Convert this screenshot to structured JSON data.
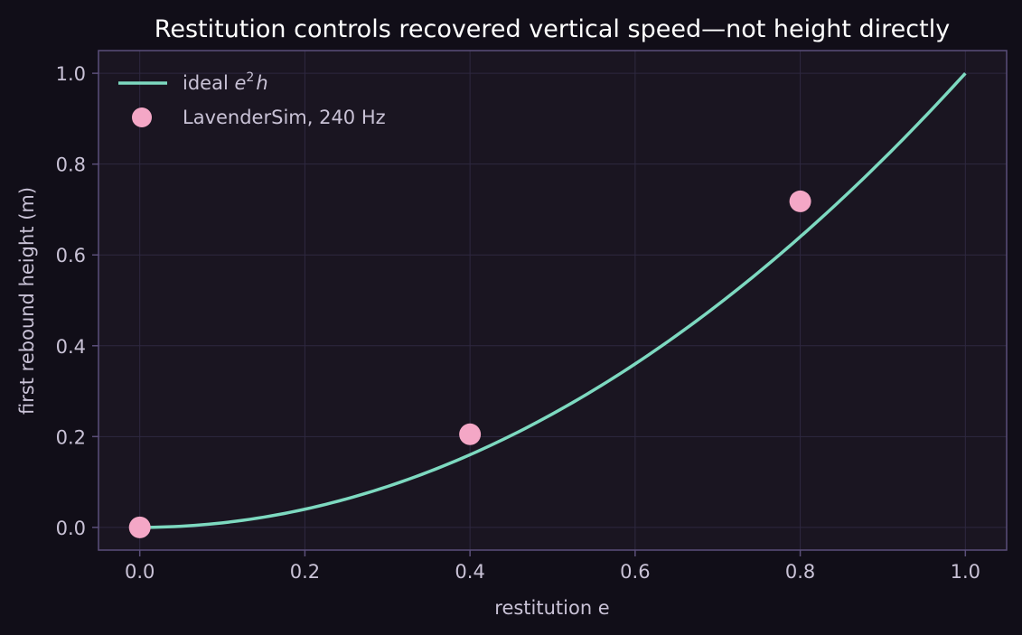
{
  "chart_data": {
    "type": "line",
    "title": "Restitution controls recovered vertical speed—not height directly",
    "xlabel": "restitution e",
    "ylabel": "first rebound height (m)",
    "xlim": [
      -0.05,
      1.05
    ],
    "ylim": [
      -0.05,
      1.05
    ],
    "x_ticks": [
      0.0,
      0.2,
      0.4,
      0.6,
      0.8,
      1.0
    ],
    "x_tick_labels": [
      "0.0",
      "0.2",
      "0.4",
      "0.6",
      "0.8",
      "1.0"
    ],
    "y_ticks": [
      0.0,
      0.2,
      0.4,
      0.6,
      0.8,
      1.0
    ],
    "y_tick_labels": [
      "0.0",
      "0.2",
      "0.4",
      "0.6",
      "0.8",
      "1.0"
    ],
    "grid": true,
    "legend_position": "top-left",
    "series": [
      {
        "name": "ideal e²h",
        "kind": "line",
        "color": "#7dd9c0",
        "function": "y = x^2",
        "x_range": [
          0.0,
          1.0
        ]
      },
      {
        "name": "LavenderSim, 240 Hz",
        "kind": "scatter",
        "color": "#f4a7c6",
        "x": [
          0.0,
          0.4,
          0.8
        ],
        "y": [
          0.0,
          0.205,
          0.718
        ]
      }
    ],
    "legend": {
      "line_prefix": "ideal ",
      "line_var": "e",
      "line_sup": "2",
      "line_suffix": "h",
      "scatter_label": "LavenderSim, 240 Hz"
    }
  },
  "colors": {
    "page_bg": "#110e18",
    "plot_bg": "#1a1521",
    "frame": "#5b4f7a",
    "grid": "#2e2840"
  }
}
